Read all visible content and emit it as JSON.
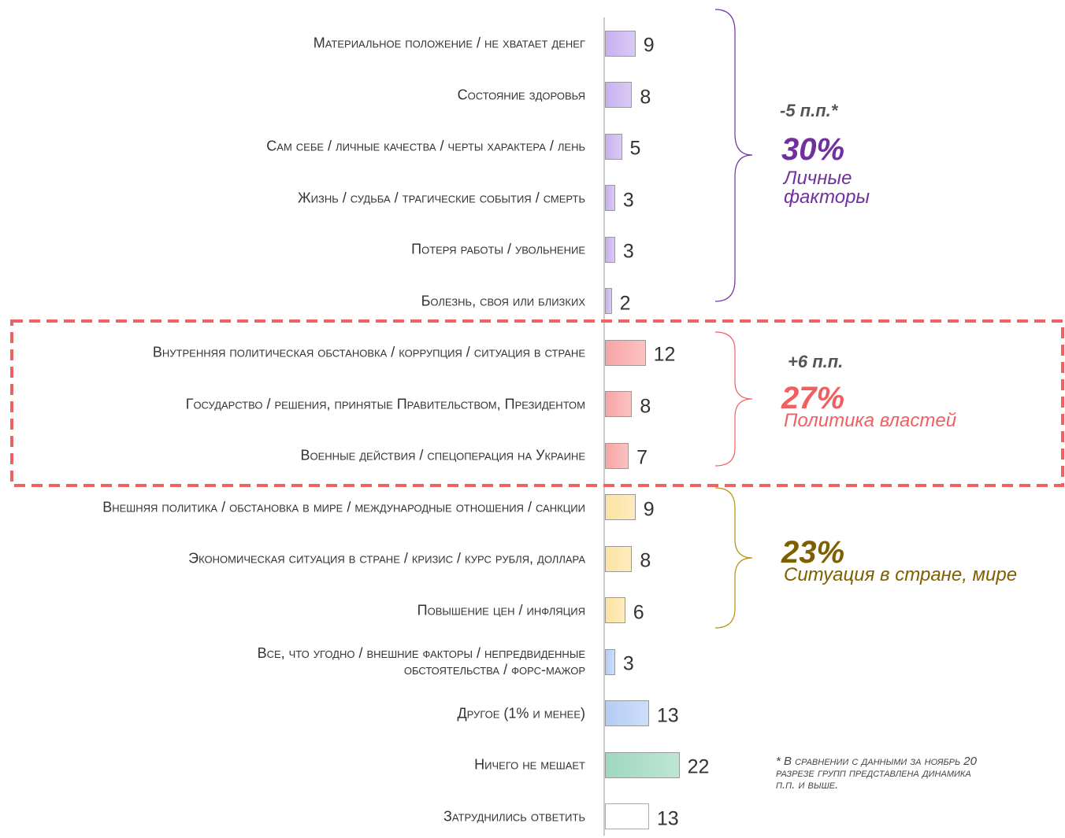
{
  "chart_data": {
    "type": "bar",
    "categories": [
      "Материальное положение / не хватает денег",
      "Состояние здоровья",
      "Сам себе / личные качества / черты характера / лень",
      "Жизнь / судьба / трагические события / смерть",
      "Потеря работы / увольнение",
      "Болезнь, своя или близких",
      "Внутренняя политическая обстановка / коррупция / ситуация в стране",
      "Государство / решения, принятые Правительством, Президентом",
      "Военные действия / спецоперация на Украине",
      "Внешняя политика / обстановка в мире / международные отношения / санкции",
      "Экономическая ситуация в стране / кризис / курс рубля, доллара",
      "Повышение цен / инфляция",
      "Все, что угодно / внешние факторы / непредвиденные обстоятельства / форс-мажор",
      "Другое (1% и менее)",
      "Ничего не мешает",
      "Затруднились ответить"
    ],
    "values": [
      9,
      8,
      5,
      3,
      3,
      2,
      12,
      8,
      7,
      9,
      8,
      6,
      3,
      13,
      22,
      13
    ],
    "colors": [
      "#c8b0f0",
      "#c8b0f0",
      "#c8b0f0",
      "#c8b0f0",
      "#c8b0f0",
      "#c8b0f0",
      "#f8a4a4",
      "#f8a4a4",
      "#f8a4a4",
      "#fde2a0",
      "#fde2a0",
      "#fde2a0",
      "#b4cdf5",
      "#b4cdf5",
      "#9fd8c0",
      "#ffffff"
    ],
    "annotations": [
      {
        "change": "-5 п.п.*",
        "share": "30%",
        "label": "Личные факторы"
      },
      {
        "change": "+6 п.п.",
        "share": "27%",
        "label": "Политика властей"
      },
      {
        "share": "23%",
        "label": "Ситуация в стране, мире"
      }
    ],
    "footnote": [
      "* В сравнении с данными за ноябрь 20",
      "разрезе групп представлена динамика",
      "п.п. и выше."
    ]
  }
}
